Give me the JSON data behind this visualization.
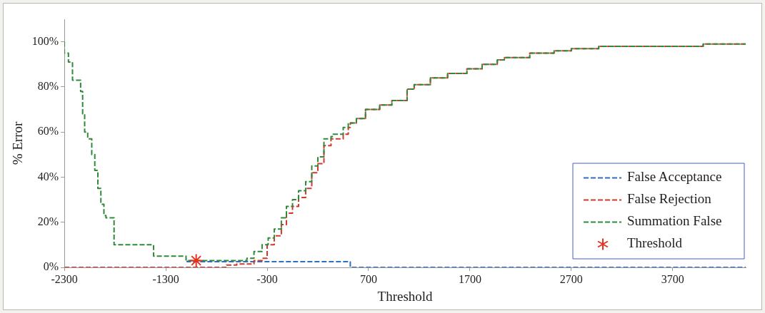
{
  "chart_data": {
    "type": "step",
    "xlabel": "Threshold",
    "ylabel": "% Error",
    "xlim": [
      -2300,
      4420
    ],
    "xticks": [
      -2300,
      -1300,
      -300,
      700,
      1700,
      2700,
      3700
    ],
    "ylim": [
      0,
      110
    ],
    "yticks": [
      {
        "value": 0,
        "label": "0%"
      },
      {
        "value": 20,
        "label": "20%"
      },
      {
        "value": 40,
        "label": "40%"
      },
      {
        "value": 60,
        "label": "60%"
      },
      {
        "value": 80,
        "label": "80%"
      },
      {
        "value": 100,
        "label": "100%"
      }
    ],
    "grid": false,
    "legend": "bottom right",
    "line_style": "dashed",
    "marker": "none",
    "series": [
      {
        "name": "False Acceptance",
        "color": "#2e6fc4",
        "x": [
          -1090,
          -420,
          520,
          560,
          4420
        ],
        "values": [
          3,
          2.5,
          2.5,
          0,
          0
        ]
      },
      {
        "name": "False Rejection",
        "color": "#d2382b",
        "x": [
          -2300,
          -700,
          -600,
          -430,
          -350,
          -300,
          -230,
          -160,
          -110,
          -50,
          10,
          80,
          140,
          200,
          260,
          330,
          450,
          500,
          520,
          580,
          670,
          810,
          930,
          1080,
          1150,
          1310,
          1480,
          1670,
          1820,
          1970,
          2040,
          2290,
          2530,
          2700,
          2970,
          3610,
          4000,
          4340,
          4420
        ],
        "values": [
          0,
          0,
          1,
          1.5,
          3,
          4,
          10,
          14,
          19,
          24,
          27,
          31,
          35,
          42,
          46,
          54,
          57,
          59,
          62,
          64,
          66,
          70,
          72,
          74,
          79,
          81,
          84,
          86,
          88,
          90,
          92,
          93,
          95,
          96,
          97,
          98,
          98,
          99,
          99
        ]
      },
      {
        "name": "Summation False",
        "color": "#2f8a3a",
        "x": [
          -2300,
          -2260,
          -2220,
          -2190,
          -2140,
          -2120,
          -2100,
          -2070,
          -2030,
          -2000,
          -1970,
          -1940,
          -1910,
          -1890,
          -1810,
          -1730,
          -1420,
          -1390,
          -1100,
          -1090,
          -500,
          -430,
          -350,
          -290,
          -230,
          -160,
          -110,
          -50,
          10,
          80,
          140,
          200,
          260,
          330,
          350,
          450,
          500,
          580,
          670,
          810,
          930,
          1080,
          1150,
          1310,
          1480,
          1670,
          1820,
          1970,
          2040,
          2290,
          2530,
          2700,
          2970,
          3610,
          4000,
          4340,
          4420
        ],
        "values": [
          100,
          95,
          91,
          83,
          83,
          78,
          68,
          60,
          57,
          50,
          43,
          35,
          28,
          23,
          22,
          10,
          10,
          5,
          5,
          3,
          3,
          4,
          7,
          10,
          13,
          17,
          22,
          27,
          30,
          34,
          38,
          45,
          49,
          57,
          58,
          59,
          62,
          64,
          66,
          70,
          72,
          74,
          79,
          81,
          84,
          86,
          88,
          90,
          92,
          93,
          95,
          96,
          97,
          98,
          98,
          99,
          99
        ]
      },
      {
        "name": "Threshold",
        "type": "scatter",
        "marker": "cross",
        "color": "#e8301c",
        "x": [
          -1000
        ],
        "values": [
          3
        ]
      }
    ]
  }
}
